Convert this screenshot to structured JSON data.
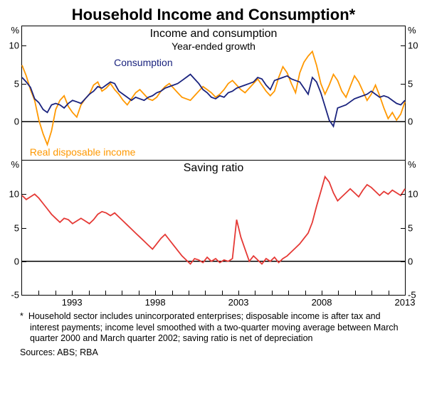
{
  "title": "Household Income and Consumption*",
  "panel_top": {
    "title_line1": "Income and consumption",
    "title_line2": "Year-ended growth",
    "y_unit": "%",
    "ylim": [
      -5,
      12.5
    ],
    "yticks": [
      0,
      5,
      10
    ],
    "series": {
      "consumption": {
        "label": "Consumption",
        "color": "#1a237e",
        "line_width": 1.8,
        "label_pos": {
          "x": 0.24,
          "y": 0.23
        },
        "data": [
          5.8,
          5.2,
          4.5,
          3.0,
          2.5,
          1.6,
          1.2,
          2.2,
          2.4,
          2.2,
          1.8,
          2.4,
          2.8,
          2.6,
          2.4,
          3.0,
          3.6,
          4.0,
          4.6,
          4.4,
          4.8,
          5.2,
          5.0,
          4.0,
          3.6,
          3.2,
          2.8,
          3.2,
          3.0,
          2.8,
          3.2,
          3.4,
          3.8,
          4.0,
          4.4,
          4.6,
          4.8,
          5.0,
          5.4,
          5.8,
          6.2,
          5.6,
          5.0,
          4.2,
          3.8,
          3.2,
          3.0,
          3.4,
          3.2,
          3.8,
          4.0,
          4.4,
          4.6,
          4.8,
          5.0,
          5.2,
          5.8,
          5.6,
          4.8,
          4.2,
          5.4,
          5.6,
          5.8,
          6.0,
          5.6,
          5.4,
          5.2,
          4.4,
          3.6,
          5.8,
          5.2,
          3.8,
          2.0,
          0.2,
          -0.6,
          1.8,
          2.0,
          2.2,
          2.6,
          3.0,
          3.2,
          3.4,
          3.6,
          4.0,
          3.6,
          3.2,
          3.4,
          3.2,
          2.8,
          2.4,
          2.2,
          2.8
        ]
      },
      "income": {
        "label": "Real disposable income",
        "color": "#ff9800",
        "line_width": 1.8,
        "label_pos": {
          "x": 0.02,
          "y": 0.9
        },
        "data": [
          7.4,
          6.0,
          4.2,
          2.8,
          0.2,
          -1.6,
          -3.0,
          -1.2,
          1.6,
          2.8,
          3.4,
          2.0,
          1.2,
          0.6,
          2.2,
          3.0,
          3.6,
          4.8,
          5.2,
          4.0,
          4.4,
          5.0,
          4.2,
          3.6,
          2.8,
          2.2,
          3.0,
          3.8,
          4.2,
          3.6,
          3.0,
          2.8,
          3.2,
          4.0,
          4.6,
          5.0,
          4.4,
          3.8,
          3.2,
          3.0,
          2.8,
          3.4,
          4.0,
          4.6,
          4.2,
          3.8,
          3.2,
          3.6,
          4.2,
          5.0,
          5.4,
          4.8,
          4.2,
          3.8,
          4.4,
          5.0,
          5.6,
          4.8,
          4.0,
          3.4,
          4.0,
          5.8,
          7.2,
          6.4,
          5.0,
          3.8,
          6.4,
          7.8,
          8.6,
          9.2,
          7.4,
          5.0,
          3.6,
          4.8,
          6.2,
          5.4,
          4.0,
          3.2,
          4.6,
          6.0,
          5.2,
          4.0,
          2.8,
          3.6,
          4.8,
          3.4,
          1.8,
          0.4,
          1.2,
          0.2,
          1.0,
          2.6
        ]
      }
    }
  },
  "panel_bottom": {
    "title": "Saving ratio",
    "y_unit": "%",
    "ylim": [
      -5,
      15
    ],
    "yticks": [
      -5,
      0,
      5,
      10
    ],
    "series": {
      "saving": {
        "color": "#e53935",
        "line_width": 1.8,
        "data": [
          9.8,
          9.2,
          9.6,
          10.0,
          9.4,
          8.6,
          7.8,
          7.0,
          6.4,
          5.8,
          6.4,
          6.2,
          5.6,
          6.0,
          6.4,
          6.0,
          5.6,
          6.2,
          7.0,
          7.4,
          7.2,
          6.8,
          7.2,
          6.6,
          6.0,
          5.4,
          4.8,
          4.2,
          3.6,
          3.0,
          2.4,
          1.8,
          2.6,
          3.4,
          4.0,
          3.2,
          2.4,
          1.6,
          0.8,
          0.2,
          -0.4,
          0.4,
          0.2,
          -0.2,
          0.6,
          0.0,
          0.4,
          -0.2,
          0.2,
          0.0,
          0.4,
          6.2,
          3.6,
          1.8,
          0.0,
          0.8,
          0.2,
          -0.4,
          0.4,
          0.0,
          0.6,
          -0.2,
          0.4,
          0.8,
          1.4,
          2.0,
          2.6,
          3.4,
          4.2,
          5.8,
          8.2,
          10.4,
          12.6,
          11.8,
          10.2,
          9.0,
          9.6,
          10.2,
          10.8,
          10.2,
          9.6,
          10.6,
          11.4,
          11.0,
          10.4,
          9.8,
          10.4,
          10.0,
          10.6,
          10.2,
          9.8,
          10.8
        ]
      }
    }
  },
  "x_axis": {
    "range": [
      1990,
      2013
    ],
    "ticks": [
      1993,
      1998,
      2003,
      2008,
      2013
    ],
    "minor_step": 1
  },
  "footnote_marker": "*",
  "footnote": "Household sector includes unincorporated enterprises; disposable income is after tax and interest payments; income level smoothed with a two-quarter moving average between March quarter 2000 and March quarter 2002; saving ratio is net of depreciation",
  "sources_label": "Sources:",
  "sources": "ABS; RBA"
}
